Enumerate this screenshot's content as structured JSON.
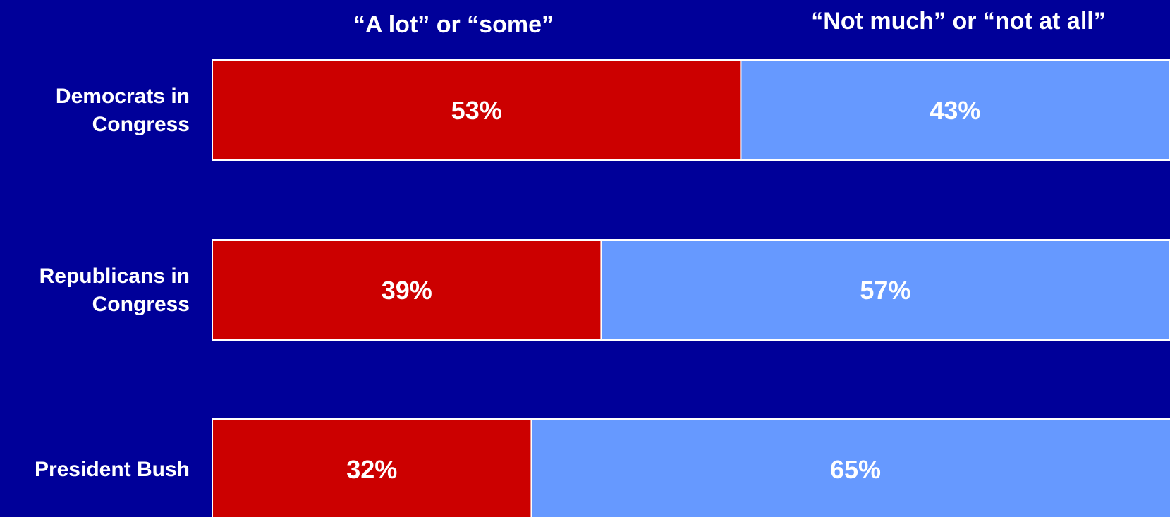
{
  "chart_data": {
    "type": "bar",
    "orientation": "horizontal",
    "stacked": true,
    "categories": [
      [
        "Democrats in",
        "Congress"
      ],
      [
        "Republicans in",
        "Congress"
      ],
      [
        "President Bush"
      ]
    ],
    "series": [
      {
        "name": "“A lot” or “some”",
        "values": [
          53,
          39,
          32
        ],
        "color": "#cc0000"
      },
      {
        "name": "“Not much” or “not at all”",
        "values": [
          43,
          57,
          65
        ],
        "color": "#6699ff"
      }
    ],
    "value_suffix": "%",
    "xlim": [
      0,
      100
    ],
    "grid": false,
    "legend": "top",
    "background": "#000099",
    "bar_border_color": "#ffffff"
  }
}
